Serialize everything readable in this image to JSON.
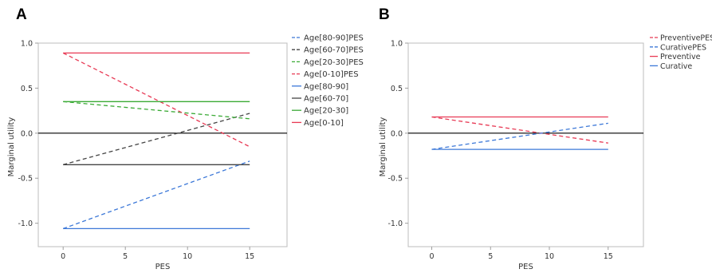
{
  "chart_data": [
    {
      "panel_label": "A",
      "type": "line",
      "xlabel": "PES",
      "ylabel": "Marginal utility",
      "x_ticks": [
        0,
        5,
        10,
        15
      ],
      "y_ticks": [
        1.0,
        0.5,
        0.0,
        -0.5,
        -1.0
      ],
      "y_tick_labels": [
        "1.0",
        "0.5",
        "0.0",
        "-0.5",
        "-1.0"
      ],
      "xlim": [
        -2,
        18
      ],
      "ylim": [
        -1.26,
        1.0
      ],
      "grid": false,
      "reference_line": 0,
      "legend_position": "right",
      "series": [
        {
          "name": "Age[80-90]PES",
          "color": "#3c78d8",
          "dash": true,
          "x": [
            0,
            15
          ],
          "y": [
            -1.06,
            -0.31
          ]
        },
        {
          "name": "Age[60-70]PES",
          "color": "#444444",
          "dash": true,
          "x": [
            0,
            15
          ],
          "y": [
            -0.35,
            0.22
          ]
        },
        {
          "name": "Age[20-30]PES",
          "color": "#3aaa35",
          "dash": true,
          "x": [
            0,
            15
          ],
          "y": [
            0.35,
            0.16
          ]
        },
        {
          "name": "Age[0-10]PES",
          "color": "#e83a55",
          "dash": true,
          "x": [
            0,
            15
          ],
          "y": [
            0.89,
            -0.15
          ]
        },
        {
          "name": "Age[80-90]",
          "color": "#3c78d8",
          "dash": false,
          "x": [
            0,
            15
          ],
          "y": [
            -1.06,
            -1.06
          ]
        },
        {
          "name": "Age[60-70]",
          "color": "#444444",
          "dash": false,
          "x": [
            0,
            15
          ],
          "y": [
            -0.35,
            -0.35
          ]
        },
        {
          "name": "Age[20-30]",
          "color": "#3aaa35",
          "dash": false,
          "x": [
            0,
            15
          ],
          "y": [
            0.35,
            0.35
          ]
        },
        {
          "name": "Age[0-10]",
          "color": "#e83a55",
          "dash": false,
          "x": [
            0,
            15
          ],
          "y": [
            0.89,
            0.89
          ]
        }
      ]
    },
    {
      "panel_label": "B",
      "type": "line",
      "xlabel": "PES",
      "ylabel": "Marginal utility",
      "x_ticks": [
        0,
        5,
        10,
        15
      ],
      "y_ticks": [
        1.0,
        0.5,
        0.0,
        -0.5,
        -1.0
      ],
      "y_tick_labels": [
        "1.0",
        "0.5",
        "0.0",
        "-0.5",
        "-1.0"
      ],
      "xlim": [
        -2,
        18
      ],
      "ylim": [
        -1.26,
        1.0
      ],
      "grid": false,
      "reference_line": 0,
      "legend_position": "top-right",
      "series": [
        {
          "name": "PreventivePES",
          "color": "#e83a55",
          "dash": true,
          "x": [
            0,
            15
          ],
          "y": [
            0.18,
            -0.11
          ]
        },
        {
          "name": "CurativePES",
          "color": "#3c78d8",
          "dash": true,
          "x": [
            0,
            15
          ],
          "y": [
            -0.18,
            0.11
          ]
        },
        {
          "name": "Preventive",
          "color": "#e83a55",
          "dash": false,
          "x": [
            0,
            15
          ],
          "y": [
            0.18,
            0.18
          ]
        },
        {
          "name": "Curative",
          "color": "#3c78d8",
          "dash": false,
          "x": [
            0,
            15
          ],
          "y": [
            -0.18,
            -0.18
          ]
        }
      ]
    }
  ]
}
